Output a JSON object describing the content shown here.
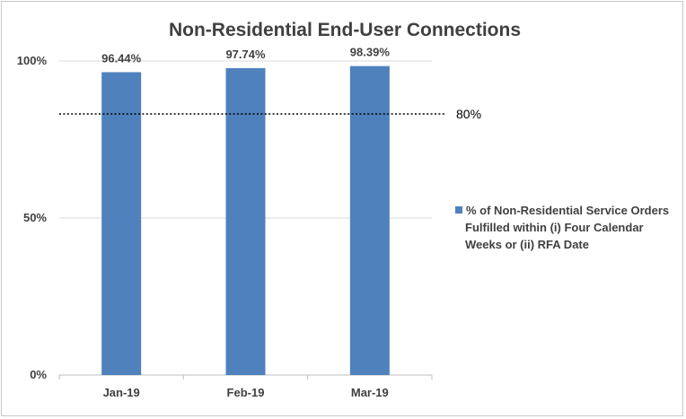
{
  "chart_data": {
    "type": "bar",
    "title": "Non-Residential End-User Connections",
    "categories": [
      "Jan-19",
      "Feb-19",
      "Mar-19"
    ],
    "series": [
      {
        "name": "% of Non-Residential Service Orders Fulfilled within (i) Four Calendar Weeks or (ii) RFA Date",
        "values": [
          96.44,
          97.74,
          98.39
        ],
        "value_labels": [
          "96.44%",
          "97.74%",
          "98.39%"
        ],
        "color": "#4f81bd"
      }
    ],
    "legend_lines": [
      "% of Non-Residential Service Orders",
      "Fulfilled within (i) Four Calendar",
      "Weeks or (ii) RFA Date"
    ],
    "target": {
      "value": 80,
      "label": "80%"
    },
    "yticks": [
      {
        "value": 0,
        "label": "0%"
      },
      {
        "value": 50,
        "label": "50%"
      },
      {
        "value": 100,
        "label": "100%"
      }
    ],
    "ylim": [
      0,
      100
    ],
    "grid": true,
    "legend_position": "right",
    "xlabel": "",
    "ylabel": ""
  }
}
